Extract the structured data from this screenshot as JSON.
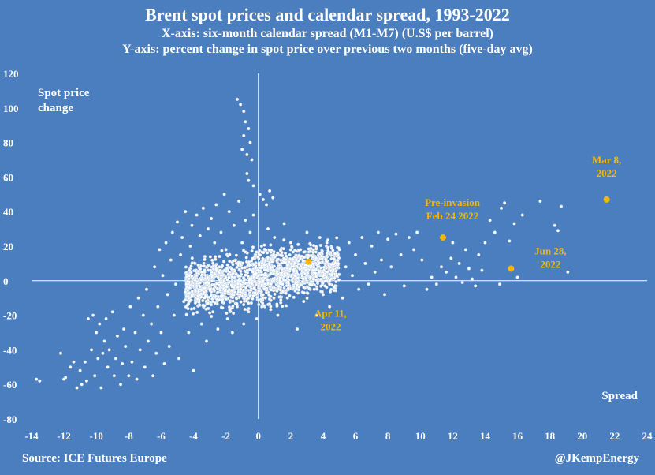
{
  "header": {
    "title": "Brent spot prices and calendar spread, 1993-2022",
    "subtitle_x": "X-axis: six-month calendar spread (M1-M7)  (U.S$ per barrel)",
    "subtitle_y": "Y-axis: percent change in spot price over previous two months (five-day avg)"
  },
  "footer": {
    "source": "Source: ICE Futures Europe",
    "credit": "@JKempEnergy"
  },
  "chart_data": {
    "type": "scatter",
    "title": "Brent spot prices and calendar spread, 1993-2022",
    "xlabel": "Spread",
    "ylabel": "Spot price change",
    "ylabel_lines": [
      "Spot price",
      "change"
    ],
    "xlim": [
      -14,
      24
    ],
    "ylim": [
      -80,
      120
    ],
    "x_ticks": [
      -14,
      -12,
      -10,
      -8,
      -6,
      -4,
      -2,
      0,
      2,
      4,
      6,
      8,
      10,
      12,
      14,
      16,
      18,
      20,
      22,
      24
    ],
    "y_ticks": [
      -80,
      -60,
      -40,
      -20,
      0,
      20,
      40,
      60,
      80,
      100,
      120
    ],
    "grid": false,
    "colors": {
      "background": "#4a7ebf",
      "points": "#ffffff",
      "highlight": "#f5b800",
      "axis": "#ffffff"
    },
    "highlights": [
      {
        "label_lines": [
          "Mar 8,",
          "2022"
        ],
        "x": 21.5,
        "y": 47
      },
      {
        "label_lines": [
          "Pre-invasion",
          "Feb 24 2022"
        ],
        "x": 11.4,
        "y": 25
      },
      {
        "label_lines": [
          "Jun 28,",
          "2022"
        ],
        "x": 15.6,
        "y": 7
      },
      {
        "label_lines": [
          "Apr 11,",
          "2022"
        ],
        "x": 3.1,
        "y": 11
      }
    ],
    "series": [
      {
        "values": [
          [
            -13.7,
            -57
          ],
          [
            -13.5,
            -58
          ],
          [
            -12.2,
            -42
          ],
          [
            -12.0,
            -57
          ],
          [
            -11.9,
            -56
          ],
          [
            -11.6,
            -50
          ],
          [
            -11.4,
            -47
          ],
          [
            -11.2,
            -62
          ],
          [
            -11.0,
            -52
          ],
          [
            -10.9,
            -60
          ],
          [
            -10.7,
            -47
          ],
          [
            -10.6,
            -58
          ],
          [
            -10.5,
            -22
          ],
          [
            -10.3,
            -40
          ],
          [
            -10.2,
            -20
          ],
          [
            -10.1,
            -55
          ],
          [
            -10.0,
            -30
          ],
          [
            -9.9,
            -45
          ],
          [
            -9.8,
            -25
          ],
          [
            -9.7,
            -62
          ],
          [
            -9.6,
            -42
          ],
          [
            -9.5,
            -35
          ],
          [
            -9.4,
            -22
          ],
          [
            -9.3,
            -50
          ],
          [
            -9.2,
            -40
          ],
          [
            -9.0,
            -18
          ],
          [
            -8.9,
            -55
          ],
          [
            -8.8,
            -45
          ],
          [
            -8.7,
            -32
          ],
          [
            -8.5,
            -60
          ],
          [
            -8.4,
            -48
          ],
          [
            -8.3,
            -28
          ],
          [
            -8.2,
            -38
          ],
          [
            -8.0,
            -55
          ],
          [
            -7.9,
            -15
          ],
          [
            -7.8,
            -47
          ],
          [
            -7.6,
            -30
          ],
          [
            -7.5,
            -57
          ],
          [
            -7.4,
            -10
          ],
          [
            -7.3,
            -40
          ],
          [
            -7.1,
            -20
          ],
          [
            -7.0,
            -50
          ],
          [
            -6.9,
            -5
          ],
          [
            -6.8,
            -35
          ],
          [
            -6.6,
            -25
          ],
          [
            -6.5,
            -55
          ],
          [
            -6.4,
            8
          ],
          [
            -6.3,
            -42
          ],
          [
            -6.2,
            -15
          ],
          [
            -6.1,
            18
          ],
          [
            -6.0,
            -30
          ],
          [
            -5.9,
            3
          ],
          [
            -5.8,
            -48
          ],
          [
            -5.7,
            22
          ],
          [
            -5.6,
            -8
          ],
          [
            -5.5,
            -38
          ],
          [
            -5.4,
            12
          ],
          [
            -5.3,
            28
          ],
          [
            -5.2,
            -20
          ],
          [
            -5.1,
            -2
          ],
          [
            -5.0,
            34
          ],
          [
            -4.9,
            -45
          ],
          [
            -4.8,
            15
          ],
          [
            -4.7,
            25
          ],
          [
            -4.6,
            -12
          ],
          [
            -4.5,
            40
          ],
          [
            -4.4,
            5
          ],
          [
            -4.3,
            -30
          ],
          [
            -4.2,
            20
          ],
          [
            -4.1,
            32
          ],
          [
            -4.0,
            -52
          ],
          [
            -3.9,
            10
          ],
          [
            -3.8,
            38
          ],
          [
            -3.7,
            -5
          ],
          [
            -3.6,
            26
          ],
          [
            -3.5,
            -25
          ],
          [
            -3.4,
            42
          ],
          [
            -3.3,
            14
          ],
          [
            -3.2,
            -35
          ],
          [
            -3.1,
            30
          ],
          [
            -3.0,
            2
          ],
          [
            -2.9,
            36
          ],
          [
            -2.8,
            -18
          ],
          [
            -2.7,
            22
          ],
          [
            -2.6,
            44
          ],
          [
            -2.5,
            -28
          ],
          [
            -2.4,
            8
          ],
          [
            -2.3,
            28
          ],
          [
            -2.2,
            -8
          ],
          [
            -2.1,
            50
          ],
          [
            -2.0,
            18
          ],
          [
            -1.9,
            -22
          ],
          [
            -1.8,
            40
          ],
          [
            -1.7,
            4
          ],
          [
            -1.6,
            -30
          ],
          [
            -1.5,
            32
          ],
          [
            -1.4,
            12
          ],
          [
            -1.3,
            -15
          ],
          [
            -1.2,
            46
          ],
          [
            -1.1,
            -5
          ],
          [
            -1.0,
            22
          ],
          [
            -0.9,
            -25
          ],
          [
            -0.8,
            35
          ],
          [
            -0.7,
            62
          ],
          [
            -0.7,
            8
          ],
          [
            -0.6,
            -18
          ],
          [
            -0.5,
            28
          ],
          [
            -0.4,
            -10
          ],
          [
            -0.3,
            38
          ],
          [
            -0.2,
            15
          ],
          [
            -0.1,
            -22
          ],
          [
            -1.3,
            105
          ],
          [
            -1.1,
            102
          ],
          [
            -0.9,
            98
          ],
          [
            -0.8,
            92
          ],
          [
            -0.6,
            88
          ],
          [
            -0.9,
            84
          ],
          [
            -0.5,
            80
          ],
          [
            -1.0,
            76
          ],
          [
            -0.7,
            73
          ],
          [
            -0.4,
            70
          ],
          [
            -0.6,
            58
          ],
          [
            -0.3,
            55
          ],
          [
            0.1,
            50
          ],
          [
            0.3,
            47
          ],
          [
            0.5,
            44
          ],
          [
            0.7,
            52
          ],
          [
            0.9,
            48
          ],
          [
            0.2,
            20
          ],
          [
            0.4,
            -15
          ],
          [
            0.6,
            30
          ],
          [
            0.8,
            -5
          ],
          [
            1.0,
            25
          ],
          [
            1.2,
            -20
          ],
          [
            1.4,
            12
          ],
          [
            1.6,
            33
          ],
          [
            1.8,
            -10
          ],
          [
            2.0,
            22
          ],
          [
            2.2,
            5
          ],
          [
            2.4,
            -28
          ],
          [
            2.6,
            18
          ],
          [
            2.8,
            -12
          ],
          [
            3.0,
            28
          ],
          [
            3.2,
            -5
          ],
          [
            3.4,
            15
          ],
          [
            3.6,
            -20
          ],
          [
            3.8,
            25
          ],
          [
            4.0,
            -8
          ],
          [
            4.2,
            20
          ],
          [
            4.4,
            -15
          ],
          [
            4.6,
            10
          ],
          [
            4.8,
            -3
          ],
          [
            5.0,
            18
          ],
          [
            5.2,
            -10
          ],
          [
            5.4,
            8
          ],
          [
            5.6,
            22
          ],
          [
            5.8,
            3
          ],
          [
            6.0,
            15
          ],
          [
            6.2,
            -5
          ],
          [
            6.4,
            25
          ],
          [
            6.6,
            10
          ],
          [
            6.8,
            -2
          ],
          [
            7.0,
            20
          ],
          [
            7.2,
            5
          ],
          [
            7.4,
            28
          ],
          [
            7.6,
            12
          ],
          [
            7.8,
            -8
          ],
          [
            8.0,
            24
          ],
          [
            8.2,
            8
          ],
          [
            8.5,
            27
          ],
          [
            8.8,
            15
          ],
          [
            9.0,
            -3
          ],
          [
            9.3,
            25
          ],
          [
            9.6,
            18
          ],
          [
            9.8,
            28
          ],
          [
            10.1,
            12
          ],
          [
            10.4,
            -5
          ],
          [
            10.7,
            2
          ],
          [
            11.0,
            -2
          ],
          [
            11.3,
            8
          ],
          [
            11.6,
            5
          ],
          [
            11.9,
            13
          ],
          [
            12.0,
            22
          ],
          [
            12.2,
            2
          ],
          [
            12.4,
            10
          ],
          [
            12.6,
            -1
          ],
          [
            12.8,
            18
          ],
          [
            13.0,
            7
          ],
          [
            13.2,
            1
          ],
          [
            13.4,
            -3
          ],
          [
            13.6,
            15
          ],
          [
            13.8,
            6
          ],
          [
            14.0,
            22
          ],
          [
            14.3,
            35
          ],
          [
            14.6,
            28
          ],
          [
            14.9,
            -2
          ],
          [
            15.0,
            42
          ],
          [
            15.2,
            45
          ],
          [
            15.5,
            23
          ],
          [
            15.8,
            33
          ],
          [
            16.0,
            2
          ],
          [
            16.3,
            38
          ],
          [
            17.4,
            46
          ],
          [
            18.3,
            32
          ],
          [
            18.5,
            29
          ],
          [
            18.7,
            43
          ],
          [
            19.1,
            5
          ]
        ]
      }
    ]
  }
}
